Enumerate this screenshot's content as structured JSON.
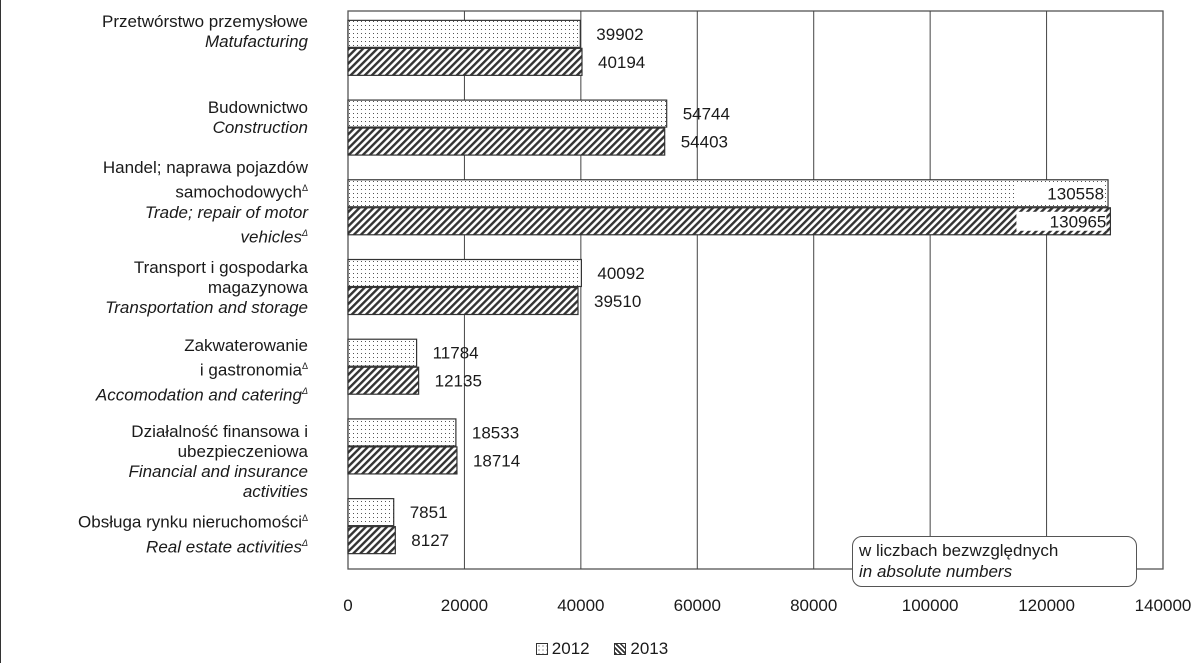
{
  "chart_data": {
    "type": "bar",
    "orientation": "horizontal",
    "categories": [
      {
        "pl": "Przetwórstwo przemysłowe",
        "en": "Matufacturing"
      },
      {
        "pl": "Budownictwo",
        "en": "Construction"
      },
      {
        "pl": "Handel; naprawa pojazdów samochodowych",
        "en": "Trade; repair of motor vehicles"
      },
      {
        "pl": "Transport i gospodarka magazynowa",
        "en": "Transportation and storage"
      },
      {
        "pl": "Zakwaterowanie i gastronomia",
        "en": "Accomodation and catering"
      },
      {
        "pl": "Działalność finansowa i ubezpieczeniowa",
        "en": "Financial and insurance activities"
      },
      {
        "pl": "Obsługa rynku nieruchomości",
        "en": "Real estate activities"
      }
    ],
    "series": [
      {
        "name": "2012",
        "pattern": "dotted",
        "values": [
          39902,
          54744,
          130558,
          40092,
          11784,
          18533,
          7851
        ]
      },
      {
        "name": "2013",
        "pattern": "hatched",
        "values": [
          40194,
          54403,
          130965,
          39510,
          12135,
          18714,
          8127
        ]
      }
    ],
    "xlim": [
      0,
      140000
    ],
    "x_ticks": [
      0,
      20000,
      40000,
      60000,
      80000,
      100000,
      120000,
      140000
    ],
    "grid": "vertical",
    "legend_position": "bottom",
    "annotation": {
      "line1": "w liczbach bezwzględnych",
      "line2": "in absolute numbers"
    }
  },
  "labels": {
    "manufacturing_pl": "Przetwórstwo przemysłowe",
    "manufacturing_en": "Matufacturing",
    "construction_pl": "Budownictwo",
    "construction_en": "Construction",
    "trade_pl_1": "Handel; naprawa pojazdów",
    "trade_pl_2": "samochodowych",
    "trade_en_1": "Trade; repair of motor",
    "trade_en_2": "vehicles",
    "transport_pl_1": "Transport i gospodarka",
    "transport_pl_2": "magazynowa",
    "transport_en": "Transportation and storage",
    "accom_pl_1": "Zakwaterowanie",
    "accom_pl_2": "i gastronomia",
    "accom_en": "Accomodation and catering",
    "finance_pl_1": "Działalność finansowa i",
    "finance_pl_2": "ubezpieczeniowa",
    "finance_en_1": "Financial and insurance",
    "finance_en_2": "activities",
    "realestate_pl": "Obsługa rynku nieruchomości",
    "realestate_en": "Real estate activities",
    "delta": "Δ"
  },
  "legend": {
    "label_2012": "2012",
    "label_2013": "2013"
  }
}
